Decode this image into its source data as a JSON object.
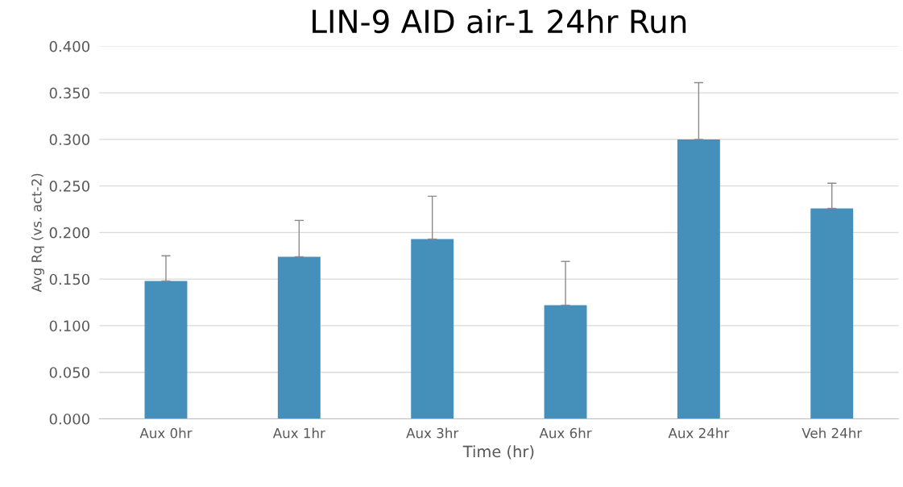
{
  "chart_data": {
    "type": "bar",
    "title": "LIN-9 AID air-1 24hr Run",
    "xlabel": "Time (hr)",
    "ylabel": "Avg Rq (vs. act-2)",
    "categories": [
      "Aux 0hr",
      "Aux 1hr",
      "Aux 3hr",
      "Aux 6hr",
      "Aux 24hr",
      "Veh 24hr"
    ],
    "values": [
      0.148,
      0.174,
      0.193,
      0.122,
      0.3,
      0.226
    ],
    "errors": [
      [
        0.148,
        0.175
      ],
      [
        0.174,
        0.213
      ],
      [
        0.193,
        0.239
      ],
      [
        0.122,
        0.169
      ],
      [
        0.3,
        0.361
      ],
      [
        0.226,
        0.253
      ]
    ],
    "color": "#4590bb",
    "ylim": [
      0,
      0.4
    ],
    "yticks": [
      {
        "value": 0,
        "label": "0.000"
      },
      {
        "value": 0.05,
        "label": "0.050"
      },
      {
        "value": 0.1,
        "label": "0.100"
      },
      {
        "value": 0.15,
        "label": "0.150"
      },
      {
        "value": 0.2,
        "label": "0.200"
      },
      {
        "value": 0.25,
        "label": "0.250"
      },
      {
        "value": 0.3,
        "label": "0.300"
      },
      {
        "value": 0.35,
        "label": "0.350"
      },
      {
        "value": 0.4,
        "label": "0.400"
      }
    ],
    "grid": "y"
  }
}
